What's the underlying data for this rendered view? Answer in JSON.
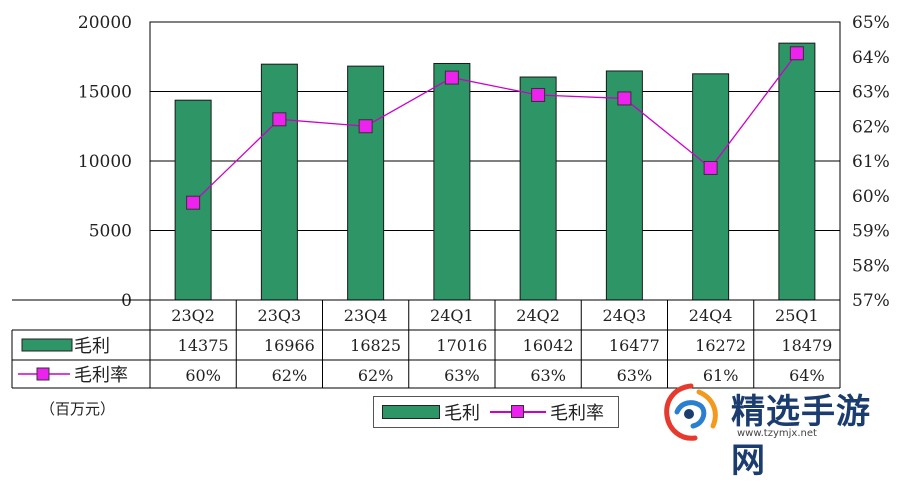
{
  "chart_data": {
    "type": "bar",
    "categories": [
      "23Q2",
      "23Q3",
      "23Q4",
      "24Q1",
      "24Q2",
      "24Q3",
      "24Q4",
      "25Q1"
    ],
    "series": [
      {
        "name": "毛利",
        "type": "bar",
        "axis": "left",
        "values": [
          14375,
          16966,
          16825,
          17016,
          16042,
          16477,
          16272,
          18479
        ]
      },
      {
        "name": "毛利率",
        "type": "line",
        "axis": "right",
        "values": [
          59.8,
          62.2,
          62.0,
          63.4,
          62.9,
          62.8,
          60.8,
          64.1
        ]
      }
    ],
    "ylim": [
      0,
      20000
    ],
    "ytick_labels": [
      "0",
      "5000",
      "10000",
      "15000",
      "20000"
    ],
    "y2lim": [
      57,
      65
    ],
    "y2tick_labels": [
      "57%",
      "58%",
      "59%",
      "60%",
      "61%",
      "62%",
      "63%",
      "64%",
      "65%"
    ],
    "grid": true,
    "legend_position": "bottom",
    "data_table": {
      "bar_row_label": "毛利",
      "line_row_label": "毛利率",
      "bar_row": [
        "14375",
        "16966",
        "16825",
        "17016",
        "16042",
        "16477",
        "16272",
        "18479"
      ],
      "line_row": [
        "60%",
        "62%",
        "62%",
        "63%",
        "63%",
        "63%",
        "61%",
        "64%"
      ]
    },
    "unit_label": "（百万元）"
  },
  "colors": {
    "bar": "#2e9566",
    "line": "#cc00cc",
    "marker": "#ee22ee"
  },
  "legend": {
    "bar_label": "毛利",
    "line_label": "毛利率"
  },
  "watermark": {
    "text": "精选手游网",
    "url": "www.tzymjx.net"
  }
}
